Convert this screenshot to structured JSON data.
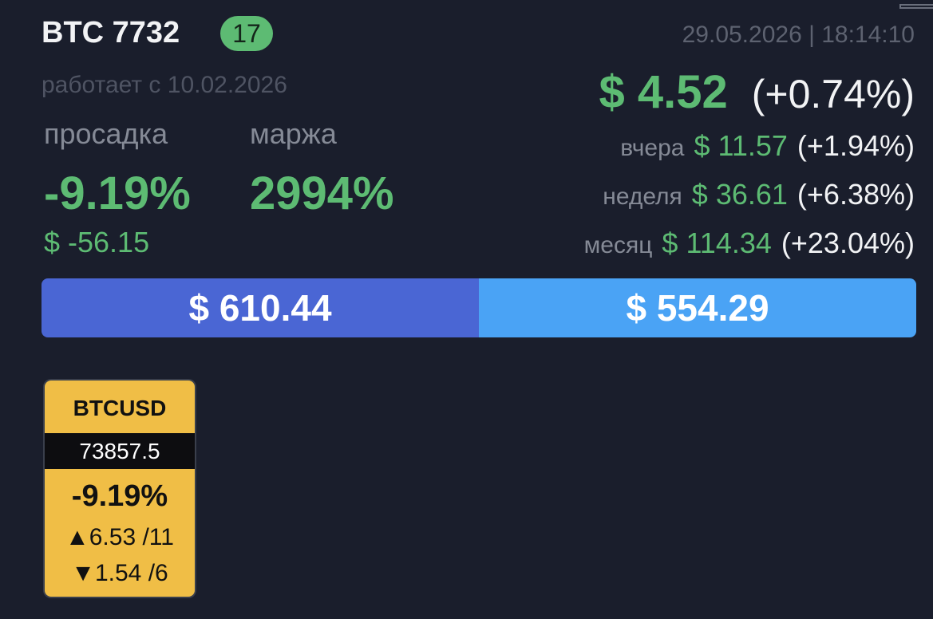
{
  "header": {
    "title": "BTC 7732",
    "badge": "17",
    "datetime": "29.05.2026 | 18:14:10",
    "running_since": "работает с 10.02.2026"
  },
  "today": {
    "profit": "$ 4.52",
    "change": "(+0.74%)"
  },
  "stats": [
    {
      "label": "просадка",
      "value": "-9.19%",
      "amount": "$ -56.15"
    },
    {
      "label": "маржа",
      "value": "2994%"
    }
  ],
  "periods": [
    {
      "label": "вчера",
      "profit": "$ 11.57",
      "change": "(+1.94%)"
    },
    {
      "label": "неделя",
      "profit": "$ 36.61",
      "change": "(+6.38%)"
    },
    {
      "label": "месяц",
      "profit": "$ 114.34",
      "change": "(+23.04%)"
    }
  ],
  "balance_bar": [
    "$ 610.44",
    "$ 554.29"
  ],
  "tickers": [
    {
      "symbol": "BTCUSD",
      "price": "73857.5",
      "change": "-9.19%",
      "up": "▲6.53 /11",
      "down": "▼1.54 /6"
    }
  ]
}
